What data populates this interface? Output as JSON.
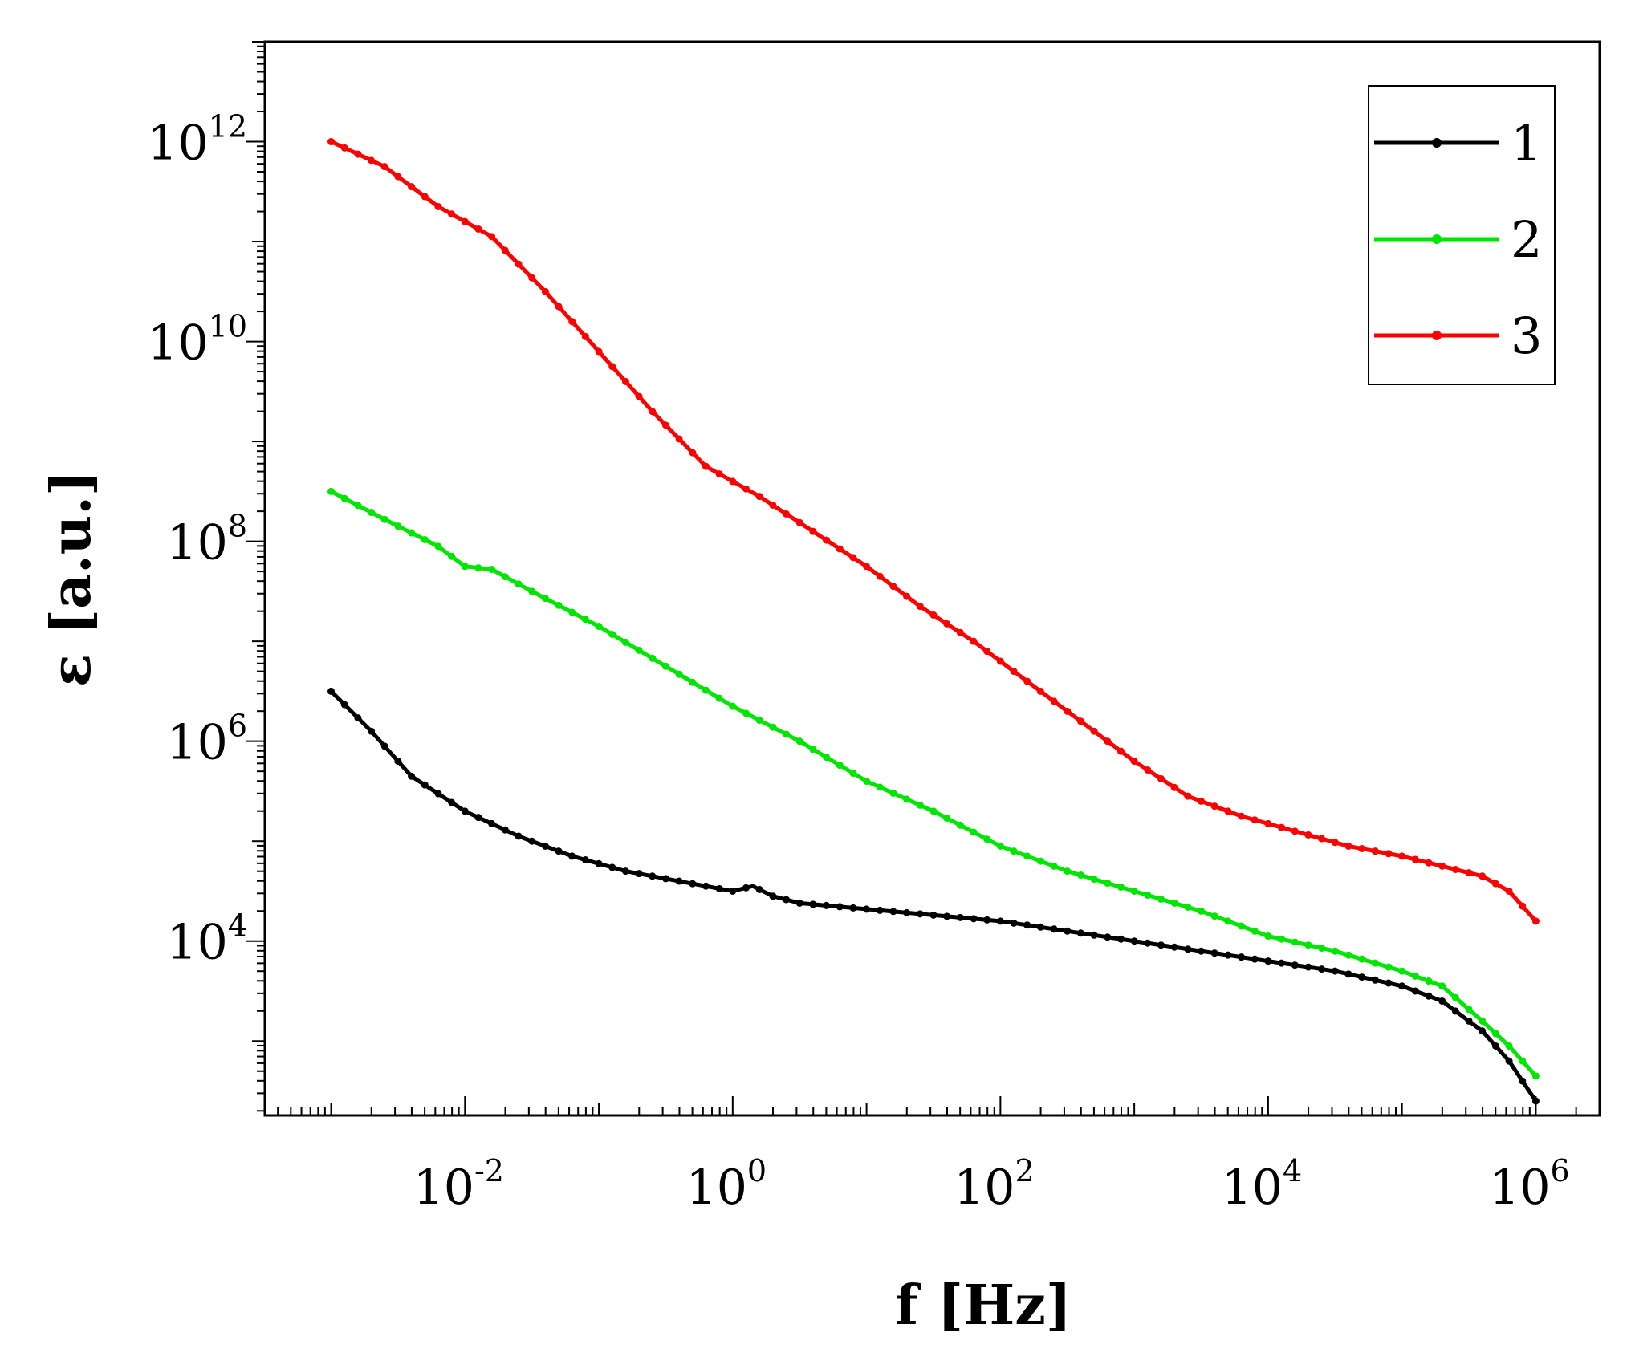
{
  "chart_data": {
    "type": "line",
    "title": "",
    "xlabel": "f [Hz]",
    "ylabel": "ε [a.u.]",
    "xscale": "log",
    "yscale": "log",
    "xlim": [
      0.00032,
      3000000
    ],
    "ylim": [
      180,
      10000000000000
    ],
    "x_tick_labels": [
      {
        "base": "10",
        "exp": "-2",
        "value": 0.01
      },
      {
        "base": "10",
        "exp": "0",
        "value": 1
      },
      {
        "base": "10",
        "exp": "2",
        "value": 100
      },
      {
        "base": "10",
        "exp": "4",
        "value": 10000
      },
      {
        "base": "10",
        "exp": "6",
        "value": 1000000
      }
    ],
    "y_tick_labels": [
      {
        "base": "10",
        "exp": "4",
        "value": 10000
      },
      {
        "base": "10",
        "exp": "6",
        "value": 1000000
      },
      {
        "base": "10",
        "exp": "8",
        "value": 100000000
      },
      {
        "base": "10",
        "exp": "10",
        "value": 10000000000
      },
      {
        "base": "10",
        "exp": "12",
        "value": 1000000000000
      }
    ],
    "legend_position": "top-right",
    "series": [
      {
        "name": "1",
        "color": "#000000",
        "log_x": [
          -3,
          -2.7,
          -2.4,
          -2,
          -1.6,
          -1.2,
          -0.8,
          -0.4,
          0,
          0.15,
          0.3,
          0.5,
          1,
          2,
          3,
          4,
          4.5,
          5,
          5.3,
          5.6,
          5.8,
          6
        ],
        "log_y": [
          6.5,
          6.1,
          5.65,
          5.3,
          5.05,
          4.85,
          4.7,
          4.6,
          4.5,
          4.55,
          4.45,
          4.38,
          4.32,
          4.2,
          4.0,
          3.8,
          3.7,
          3.55,
          3.4,
          3.1,
          2.8,
          2.4
        ]
      },
      {
        "name": "2",
        "color": "#00e600",
        "log_x": [
          -3,
          -2.6,
          -2.2,
          -2.0,
          -1.8,
          -1.5,
          -1,
          -0.5,
          0,
          0.5,
          1,
          1.5,
          2,
          2.5,
          3,
          3.5,
          4,
          4.5,
          5,
          5.3,
          5.6,
          5.8,
          6
        ],
        "log_y": [
          8.5,
          8.22,
          7.95,
          7.75,
          7.72,
          7.5,
          7.15,
          6.75,
          6.35,
          6.0,
          5.6,
          5.3,
          4.95,
          4.7,
          4.5,
          4.3,
          4.05,
          3.9,
          3.7,
          3.55,
          3.2,
          2.95,
          2.65
        ]
      },
      {
        "name": "3",
        "color": "#ff0000",
        "log_x": [
          -3,
          -2.6,
          -2.2,
          -1.8,
          -1.4,
          -1.0,
          -0.6,
          -0.2,
          0.2,
          0.6,
          1.0,
          1.4,
          1.8,
          2.2,
          2.6,
          3.0,
          3.4,
          3.8,
          4.2,
          4.6,
          5.0,
          5.3,
          5.6,
          5.8,
          6
        ],
        "log_y": [
          12,
          11.75,
          11.35,
          11.05,
          10.5,
          9.9,
          9.3,
          8.75,
          8.45,
          8.1,
          7.75,
          7.35,
          7.0,
          6.6,
          6.2,
          5.8,
          5.45,
          5.25,
          5.1,
          4.95,
          4.85,
          4.75,
          4.65,
          4.5,
          4.2
        ]
      }
    ]
  }
}
